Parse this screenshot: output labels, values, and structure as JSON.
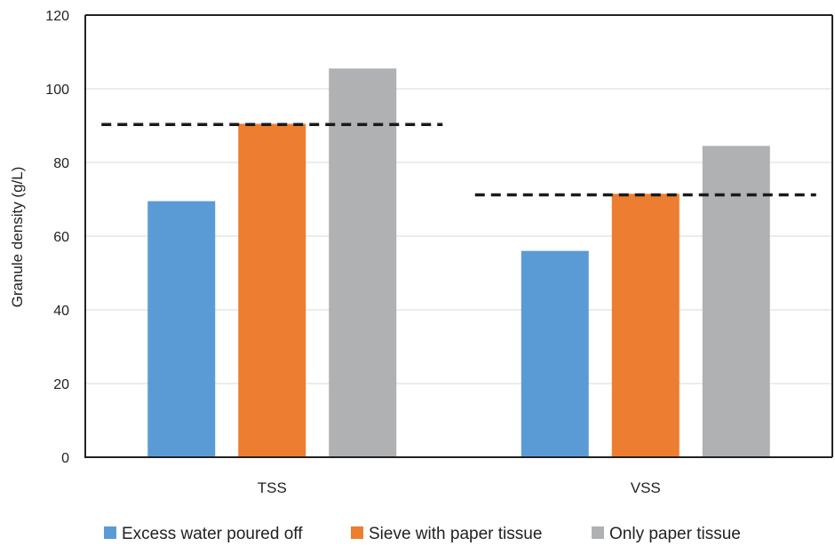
{
  "chart_data": {
    "type": "bar",
    "title": "",
    "xlabel": "",
    "ylabel": "Granule density (g/L)",
    "categories": [
      "TSS",
      "VSS"
    ],
    "series": [
      {
        "name": "Excess water poured off",
        "values": [
          69.5,
          56
        ],
        "color": "#5B9BD5"
      },
      {
        "name": "Sieve with paper tissue",
        "values": [
          90.5,
          71.5
        ],
        "color": "#ED7D31"
      },
      {
        "name": "Only paper tissue",
        "values": [
          105.5,
          84.5
        ],
        "color": "#B0B1B2"
      }
    ],
    "reference_lines": [
      {
        "category": "TSS",
        "value": 90.3
      },
      {
        "category": "VSS",
        "value": 71.2
      }
    ],
    "ylim": [
      0,
      120
    ],
    "yticks": [
      0,
      20,
      40,
      60,
      80,
      100,
      120
    ],
    "grid": true,
    "legend_position": "bottom"
  }
}
